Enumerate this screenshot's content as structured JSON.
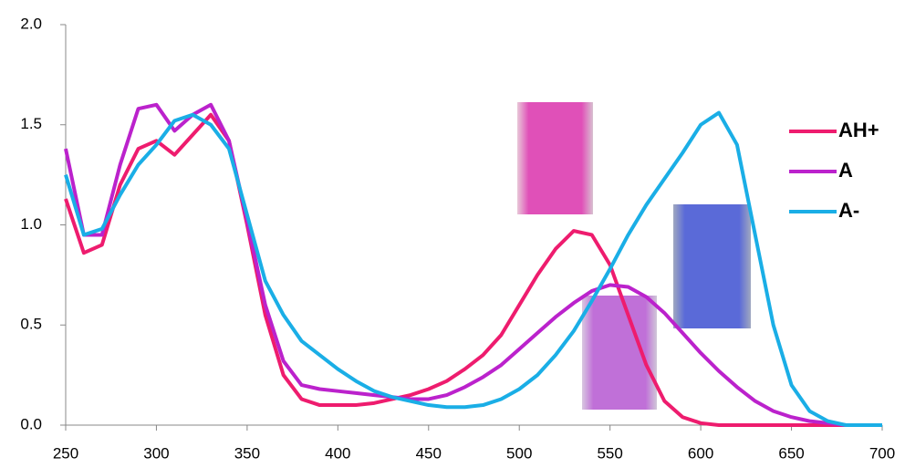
{
  "chart_data": {
    "type": "line",
    "x": [
      250,
      260,
      270,
      280,
      290,
      300,
      310,
      320,
      330,
      340,
      350,
      360,
      370,
      380,
      390,
      400,
      410,
      420,
      430,
      440,
      450,
      460,
      470,
      480,
      490,
      500,
      510,
      520,
      530,
      540,
      550,
      560,
      570,
      580,
      590,
      600,
      610,
      620,
      630,
      640,
      650,
      660,
      670,
      680,
      690,
      700
    ],
    "series": [
      {
        "name": "AH+",
        "color": "#ee1c6e",
        "values": [
          1.13,
          0.86,
          0.9,
          1.2,
          1.38,
          1.42,
          1.35,
          1.45,
          1.55,
          1.42,
          1.0,
          0.55,
          0.25,
          0.13,
          0.1,
          0.1,
          0.1,
          0.11,
          0.13,
          0.15,
          0.18,
          0.22,
          0.28,
          0.35,
          0.45,
          0.6,
          0.75,
          0.88,
          0.97,
          0.95,
          0.8,
          0.55,
          0.3,
          0.12,
          0.04,
          0.01,
          0,
          0,
          0,
          0,
          0,
          0,
          0,
          0,
          0,
          0
        ]
      },
      {
        "name": "A",
        "color": "#bb22cc",
        "values": [
          1.38,
          0.95,
          0.95,
          1.3,
          1.58,
          1.6,
          1.47,
          1.55,
          1.6,
          1.42,
          1.02,
          0.6,
          0.32,
          0.2,
          0.18,
          0.17,
          0.16,
          0.15,
          0.14,
          0.13,
          0.13,
          0.15,
          0.19,
          0.24,
          0.3,
          0.38,
          0.46,
          0.54,
          0.61,
          0.67,
          0.7,
          0.69,
          0.64,
          0.56,
          0.46,
          0.36,
          0.27,
          0.19,
          0.12,
          0.07,
          0.04,
          0.02,
          0.01,
          0,
          0,
          0
        ]
      },
      {
        "name": "A-",
        "color": "#1aaee6",
        "values": [
          1.25,
          0.95,
          0.98,
          1.15,
          1.3,
          1.4,
          1.52,
          1.55,
          1.5,
          1.38,
          1.05,
          0.72,
          0.55,
          0.42,
          0.35,
          0.28,
          0.22,
          0.17,
          0.14,
          0.12,
          0.1,
          0.09,
          0.09,
          0.1,
          0.13,
          0.18,
          0.25,
          0.35,
          0.47,
          0.62,
          0.78,
          0.95,
          1.1,
          1.23,
          1.36,
          1.5,
          1.56,
          1.4,
          0.95,
          0.5,
          0.2,
          0.07,
          0.02,
          0,
          0,
          0
        ]
      }
    ],
    "xlim": [
      250,
      700
    ],
    "xticks": [
      250,
      300,
      350,
      400,
      450,
      500,
      550,
      600,
      650,
      700
    ],
    "ylim": [
      0,
      2
    ],
    "yticks": [
      {
        "value": 0,
        "label": "0.0"
      },
      {
        "value": 0.5,
        "label": "0.5"
      },
      {
        "value": 1,
        "label": "1.0"
      },
      {
        "value": 1.5,
        "label": "1.5"
      },
      {
        "value": 2,
        "label": "2.0"
      }
    ],
    "grid": false,
    "legend": "right"
  }
}
